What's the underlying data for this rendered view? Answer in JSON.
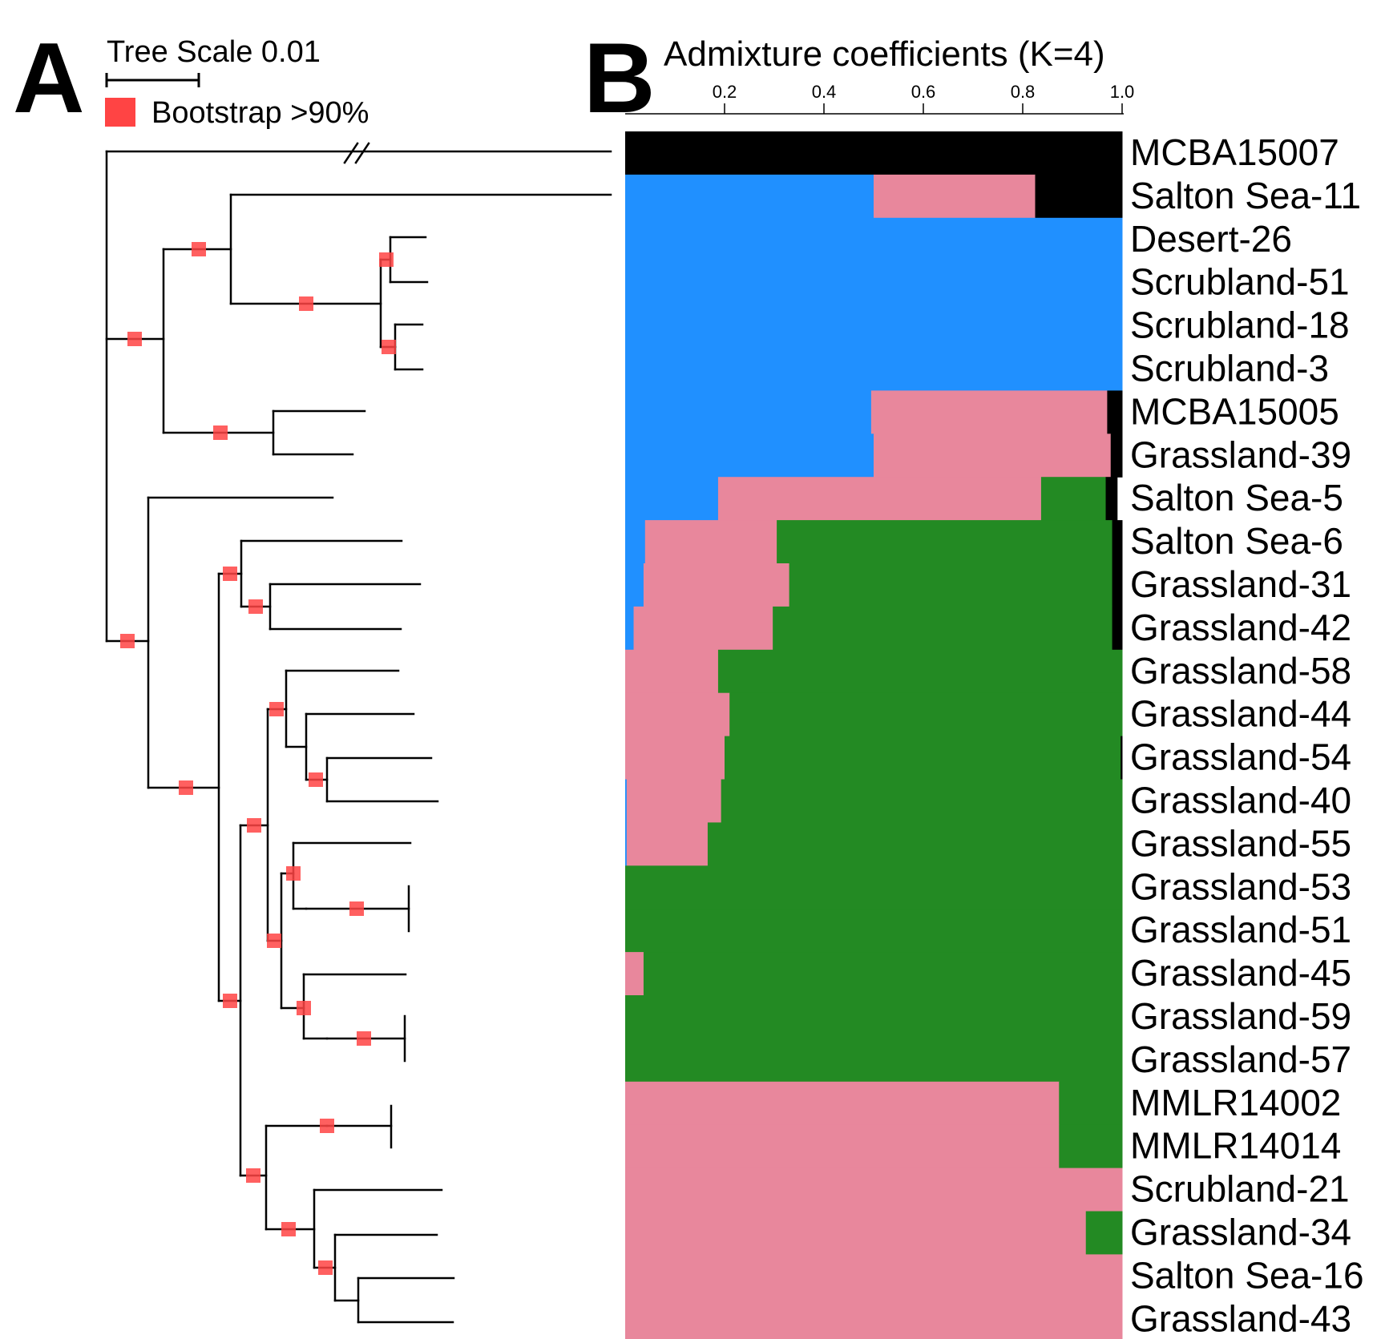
{
  "panels": {
    "a_label": "A",
    "b_label": "B"
  },
  "tree": {
    "scale_label": "Tree Scale 0.01",
    "legend_label": "Bootstrap >90%",
    "bootstrap_color": "#ff4444",
    "break_mark": "//"
  },
  "chart_data": {
    "type": "bar",
    "orientation": "horizontal-stacked",
    "title": "Admixture coefficients (K=4)",
    "xlim": [
      0,
      1.0
    ],
    "xticks": [
      "0.2",
      "0.4",
      "0.6",
      "0.8",
      "1.0"
    ],
    "xtick_values": [
      0.2,
      0.4,
      0.6,
      0.8,
      1.0
    ],
    "colors": {
      "blue": "#2090ff",
      "pink": "#e8879c",
      "green": "#238a23",
      "black": "#000000"
    },
    "categories": [
      "MCBA15007",
      "Salton Sea-11",
      "Desert-26",
      "Scrubland-51",
      "Scrubland-18",
      "Scrubland-3",
      "MCBA15005",
      "Grassland-39",
      "Salton Sea-5",
      "Salton Sea-6",
      "Grassland-31",
      "Grassland-42",
      "Grassland-58",
      "Grassland-44",
      "Grassland-54",
      "Grassland-40",
      "Grassland-55",
      "Grassland-53",
      "Grassland-51",
      "Grassland-45",
      "Grassland-59",
      "Grassland-57",
      "MMLR14002",
      "MMLR14014",
      "Scrubland-21",
      "Grassland-34",
      "Salton Sea-16",
      "Grassland-43"
    ],
    "series": [
      {
        "color": "blue",
        "values": [
          0,
          0.5,
          1.0,
          1.0,
          1.0,
          1.0,
          0.495,
          0.5,
          0.187,
          0.04,
          0.037,
          0.017,
          0,
          0,
          0,
          0.003,
          0.003,
          0,
          0,
          0,
          0,
          0,
          0,
          0,
          0,
          0,
          0,
          0
        ]
      },
      {
        "color": "pink",
        "values": [
          0,
          0.325,
          0,
          0,
          0,
          0,
          0.475,
          0.477,
          0.65,
          0.265,
          0.293,
          0.28,
          0.187,
          0.21,
          0.2,
          0.19,
          0.163,
          0,
          0,
          0.037,
          0,
          0,
          0.873,
          0.873,
          1.0,
          0.927,
          1.0,
          1.0
        ]
      },
      {
        "color": "green",
        "values": [
          0,
          0,
          0,
          0,
          0,
          0,
          0,
          0,
          0.13,
          0.675,
          0.65,
          0.683,
          0.813,
          0.79,
          0.797,
          0.807,
          0.834,
          1.0,
          1.0,
          0.963,
          1.0,
          1.0,
          0.127,
          0.127,
          0,
          0.073,
          0,
          0
        ]
      },
      {
        "color": "black",
        "values": [
          1.0,
          0.175,
          0,
          0,
          0,
          0,
          0.03,
          0.023,
          0.023,
          0.02,
          0.02,
          0.02,
          0,
          0,
          0.003,
          0,
          0,
          0,
          0,
          0,
          0,
          0,
          0,
          0,
          0,
          0,
          0,
          0
        ]
      }
    ]
  }
}
